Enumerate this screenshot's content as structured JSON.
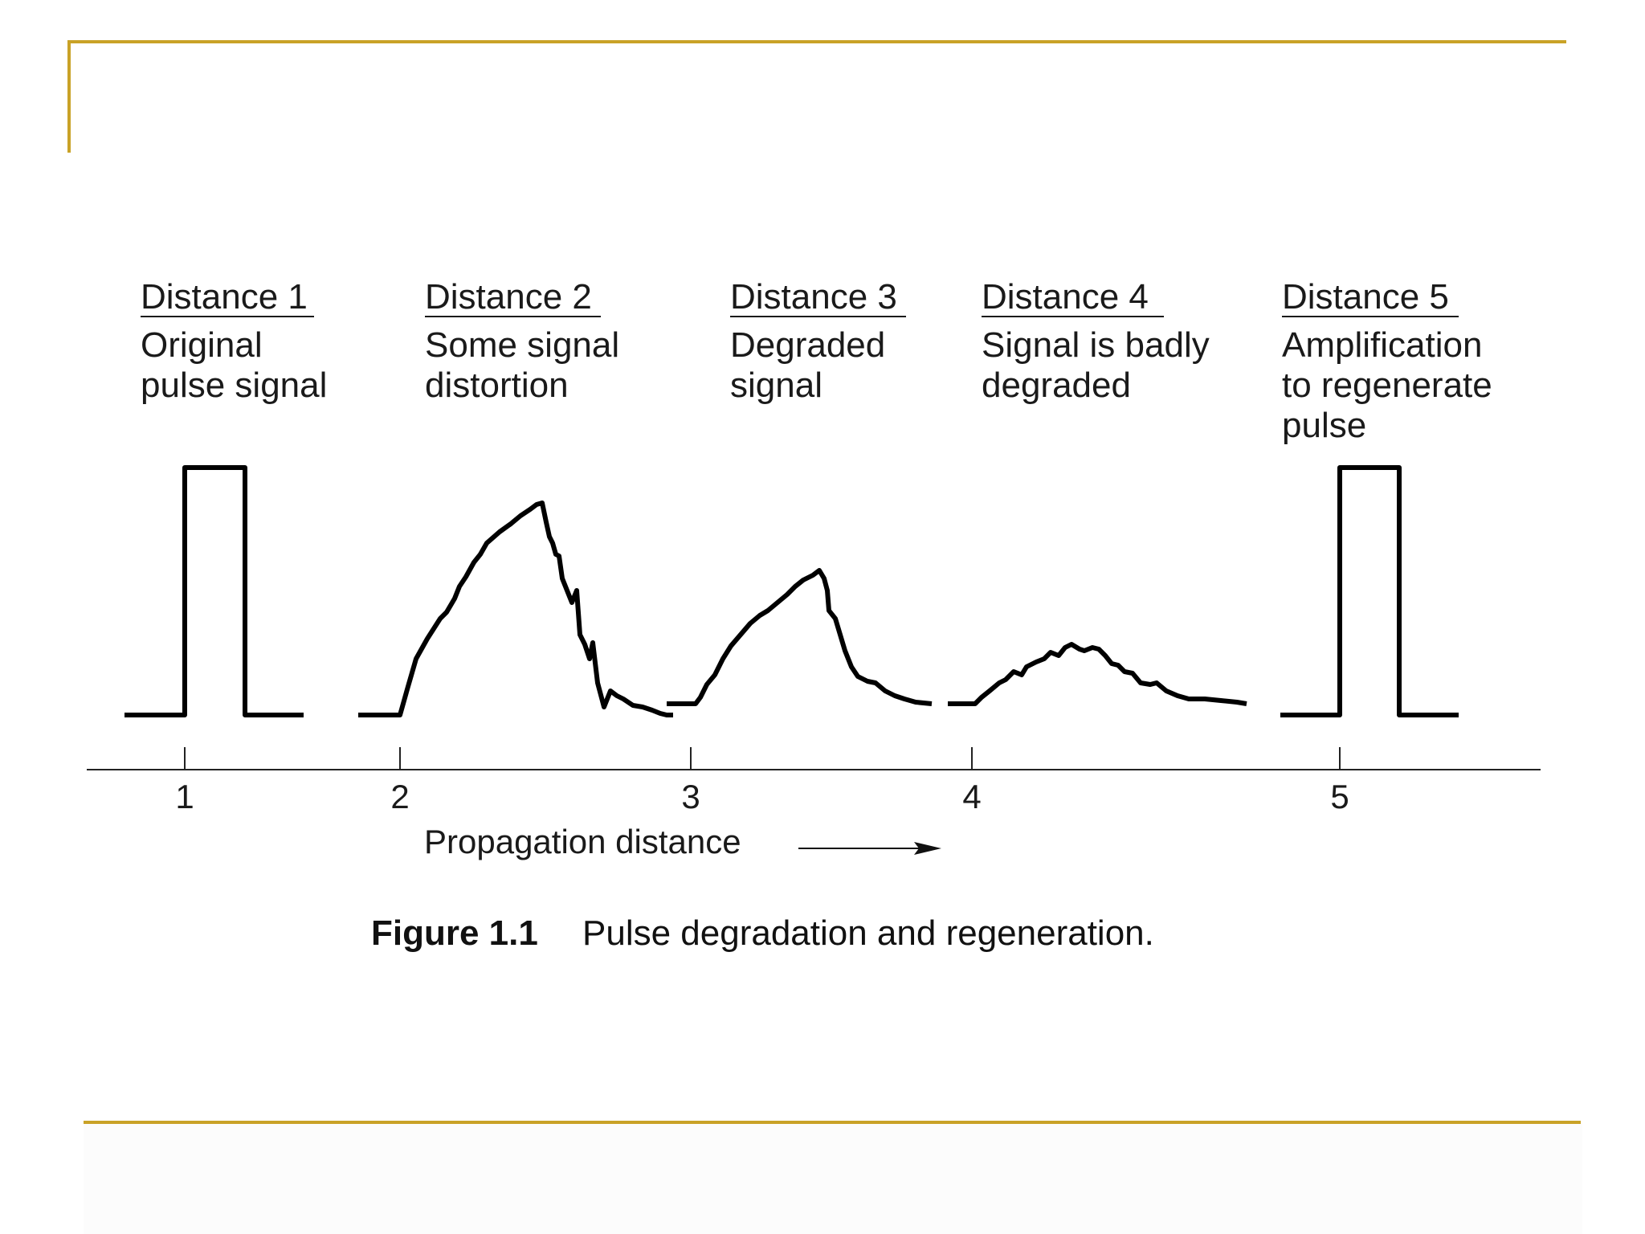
{
  "slide": {
    "accent_color": "#c9a227"
  },
  "stages": [
    {
      "title": "Distance 1",
      "lines": [
        "Original",
        "pulse signal"
      ],
      "signal": "pulse"
    },
    {
      "title": "Distance 2",
      "lines": [
        "Some signal",
        "distortion"
      ],
      "signal": "distorted"
    },
    {
      "title": "Distance 3",
      "lines": [
        "Degraded",
        "signal"
      ],
      "signal": "degraded"
    },
    {
      "title": "Distance 4",
      "lines": [
        "Signal is badly",
        "degraded"
      ],
      "signal": "badly-degraded"
    },
    {
      "title": "Distance 5",
      "lines": [
        "Amplification",
        "to regenerate",
        "pulse"
      ],
      "signal": "pulse"
    }
  ],
  "axis": {
    "ticks": [
      "1",
      "2",
      "3",
      "4",
      "5"
    ],
    "label": "Propagation distance"
  },
  "caption": {
    "number": "Figure 1.1",
    "text": "Pulse degradation and regeneration."
  }
}
